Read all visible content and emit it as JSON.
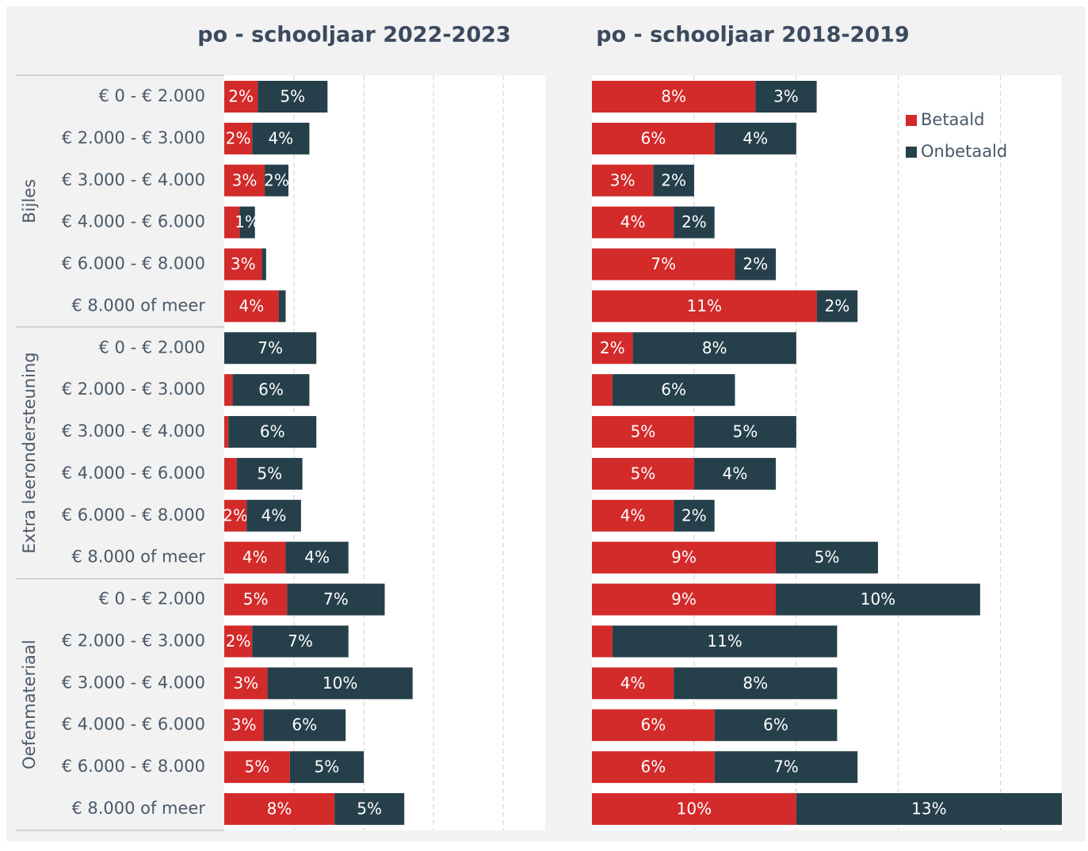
{
  "chart_data": [
    {
      "type": "barh-stacked",
      "title": "po - schooljaar 2022-2023",
      "groups": [
        {
          "name": "Bijles",
          "categories": [
            "€ 0 - € 2.000",
            "€ 2.000 - € 3.000",
            "€ 3.000 - € 4.000",
            "€ 4.000 - € 6.000",
            "€ 6.000 - € 8.000",
            "€ 8.000 of meer"
          ]
        },
        {
          "name": "Extra leerondersteuning",
          "categories": [
            "€ 0 - € 2.000",
            "€ 2.000 - € 3.000",
            "€ 3.000 - € 4.000",
            "€ 4.000 - € 6.000",
            "€ 6.000 - € 8.000",
            "€ 8.000 of meer"
          ]
        },
        {
          "name": "Oefenmateriaal",
          "categories": [
            "€ 0 - € 2.000",
            "€ 2.000 - € 3.000",
            "€ 3.000 - € 4.000",
            "€ 4.000 - € 6.000",
            "€ 6.000 - € 8.000",
            "€ 8.000 of meer"
          ]
        }
      ],
      "series": [
        {
          "color": "#d32a2a",
          "values": [
            2.4,
            2.0,
            2.9,
            1.1,
            2.7,
            3.9,
            0,
            0.6,
            0.3,
            0.9,
            1.6,
            4.4,
            4.5,
            2.0,
            3.1,
            2.8,
            4.7,
            7.9
          ],
          "value_labels": [
            "2%",
            "2%",
            "3%",
            null,
            "3%",
            "4%",
            null,
            null,
            null,
            null,
            "2%",
            "4%",
            "5%",
            "2%",
            "3%",
            "3%",
            "5%",
            "8%"
          ]
        },
        {
          "color": "#25404a",
          "values": [
            5.0,
            4.1,
            1.7,
            1.1,
            0.3,
            0.5,
            6.6,
            5.5,
            6.3,
            4.7,
            3.9,
            4.5,
            7.0,
            6.9,
            10.4,
            5.9,
            5.3,
            5.0
          ],
          "value_labels": [
            "5%",
            "4%",
            "2%",
            "1%",
            null,
            null,
            "7%",
            "6%",
            "6%",
            "5%",
            "4%",
            "4%",
            "7%",
            "7%",
            "10%",
            "6%",
            "5%",
            "5%"
          ]
        }
      ],
      "xlim": [
        0,
        23
      ],
      "xticks": [
        5,
        10,
        15,
        20
      ],
      "grid": true
    },
    {
      "type": "barh-stacked",
      "title": "po - schooljaar 2018-2019",
      "series": [
        {
          "name": "Betaald",
          "color": "#d32a2a",
          "values": [
            8,
            6,
            3,
            4,
            7,
            11,
            2,
            1,
            5,
            5,
            4,
            9,
            9,
            1,
            4,
            6,
            6,
            10
          ],
          "value_labels": [
            "8%",
            "6%",
            "3%",
            "4%",
            "7%",
            "11%",
            "2%",
            null,
            "5%",
            "5%",
            "4%",
            "9%",
            "9%",
            null,
            "4%",
            "6%",
            "6%",
            "10%"
          ]
        },
        {
          "name": "Onbetaald",
          "color": "#25404a",
          "values": [
            3,
            4,
            2,
            2,
            2,
            2,
            8,
            6,
            5,
            4,
            2,
            5,
            10,
            11,
            8,
            6,
            7,
            13
          ],
          "value_labels": [
            "3%",
            "4%",
            "2%",
            "2%",
            "2%",
            "2%",
            "8%",
            "6%",
            "5%",
            "4%",
            "2%",
            "5%",
            "10%",
            "11%",
            "8%",
            "6%",
            "7%",
            "13%"
          ]
        }
      ],
      "xlim": [
        0,
        23
      ],
      "xticks": [
        5,
        10,
        15,
        20
      ],
      "grid": true,
      "legend": "upper right"
    }
  ]
}
